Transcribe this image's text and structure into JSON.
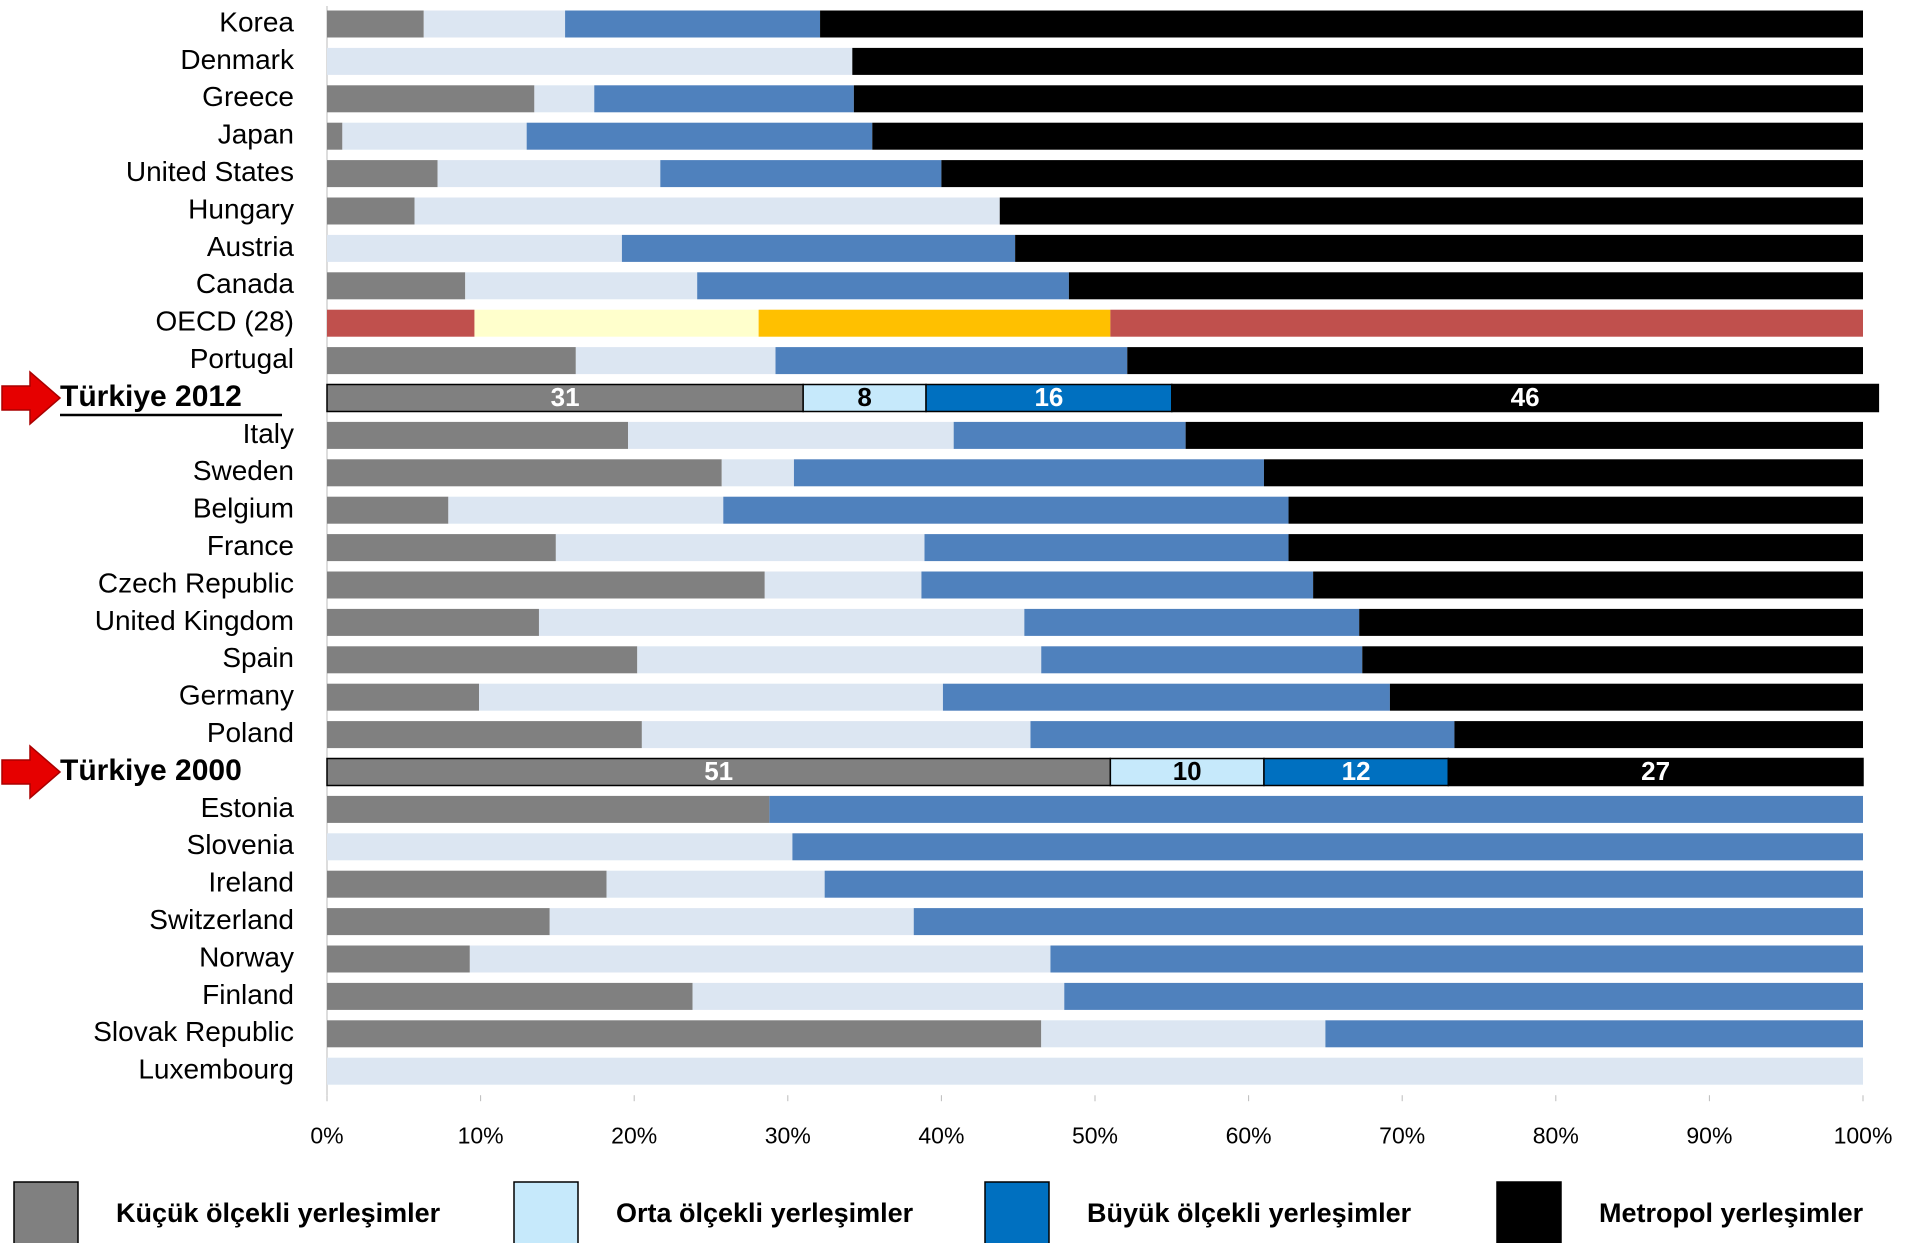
{
  "chart_data": {
    "type": "stacked_barh",
    "categories": [
      "Korea",
      "Denmark",
      "Greece",
      "Japan",
      "United States",
      "Hungary",
      "Austria",
      "Canada",
      "OECD (28)",
      "Portugal",
      "Türkiye 2012",
      "Italy",
      "Sweden",
      "Belgium",
      "France",
      "Czech Republic",
      "United Kingdom",
      "Spain",
      "Germany",
      "Poland",
      "Türkiye 2000",
      "Estonia",
      "Slovenia",
      "Ireland",
      "Switzerland",
      "Norway",
      "Finland",
      "Slovak Republic",
      "Luxembourg"
    ],
    "series": [
      {
        "name": "Küçük ölçekli yerleşimler",
        "color": "#808080",
        "row_color": "#808080",
        "oecd_color": "#c0504d",
        "values": [
          6.3,
          0,
          13.5,
          1.0,
          7.2,
          5.7,
          0,
          9.0,
          9.6,
          16.2,
          31,
          19.6,
          25.7,
          7.9,
          14.9,
          28.5,
          13.8,
          20.2,
          9.9,
          20.5,
          51,
          28.8,
          0,
          18.2,
          14.5,
          9.3,
          23.8,
          46.5,
          0
        ]
      },
      {
        "name": "Orta ölçekli yerleşimler",
        "color": "#c6e9fb",
        "row_color": "#dce6f2",
        "oecd_color": "#ffffcc",
        "values": [
          9.2,
          34.2,
          3.9,
          12.0,
          14.5,
          38.1,
          19.2,
          15.1,
          18.5,
          13.0,
          8,
          21.2,
          4.7,
          17.9,
          24.0,
          10.2,
          31.6,
          26.3,
          30.2,
          25.3,
          10,
          0,
          30.3,
          14.2,
          23.7,
          37.8,
          24.2,
          18.5,
          100
        ]
      },
      {
        "name": "Büyük ölçekli yerleşimler",
        "color": "#0070c0",
        "row_color": "#4f81bd",
        "oecd_color": "#ffc000",
        "values": [
          16.6,
          0,
          16.9,
          22.5,
          18.3,
          0,
          25.6,
          24.2,
          22.9,
          22.9,
          16,
          15.1,
          30.6,
          36.8,
          23.7,
          25.5,
          21.8,
          20.9,
          29.1,
          27.6,
          12,
          71.2,
          69.7,
          67.6,
          61.8,
          52.9,
          52.0,
          35.0,
          0
        ]
      },
      {
        "name": "Metropol yerleşimler",
        "color": "#000000",
        "row_color": "#000000",
        "oecd_color": "#c0504d",
        "values": [
          67.9,
          65.8,
          65.7,
          64.5,
          60.0,
          56.2,
          55.2,
          51.7,
          49.0,
          47.9,
          46,
          44.1,
          39.0,
          37.4,
          37.4,
          35.8,
          32.8,
          32.6,
          30.8,
          26.6,
          27,
          0,
          0,
          0,
          0,
          0,
          0,
          0,
          0
        ]
      }
    ],
    "highlight_rows": [
      10,
      20
    ],
    "oecd_row": 8,
    "xlim": [
      0,
      100
    ],
    "xticks": [
      {
        "value": 0,
        "label": "0%"
      },
      {
        "value": 10,
        "label": "10%"
      },
      {
        "value": 20,
        "label": "20%"
      },
      {
        "value": 30,
        "label": "30%"
      },
      {
        "value": 40,
        "label": "40%"
      },
      {
        "value": 50,
        "label": "50%"
      },
      {
        "value": 60,
        "label": "60%"
      },
      {
        "value": 70,
        "label": "70%"
      },
      {
        "value": 80,
        "label": "80%"
      },
      {
        "value": 90,
        "label": "90%"
      },
      {
        "value": 100,
        "label": "100%"
      }
    ],
    "legend": "bottom"
  }
}
